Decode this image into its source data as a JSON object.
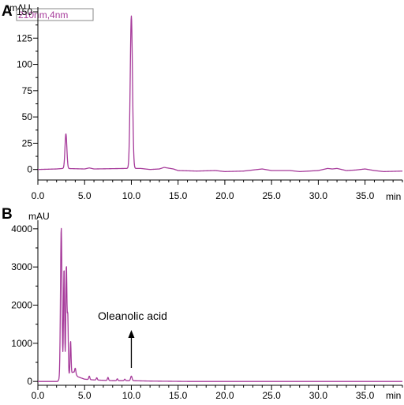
{
  "chart_data": [
    {
      "panel": "A",
      "type": "line",
      "ylabel": "mAU",
      "xlabel": "min",
      "legend": "210nm,4nm",
      "xlim": [
        0,
        39
      ],
      "ylim": [
        -10,
        150
      ],
      "xticks": [
        0,
        5,
        10,
        15,
        20,
        25,
        30,
        35
      ],
      "xtick_labels": [
        "0.0",
        "5.0",
        "10.0",
        "15.0",
        "20.0",
        "25.0",
        "30.0",
        "35.0"
      ],
      "yticks": [
        0,
        25,
        50,
        75,
        100,
        125,
        150
      ],
      "ytick_labels": [
        "0",
        "25",
        "50",
        "75",
        "100",
        "125",
        "150"
      ],
      "baseline": [
        [
          0,
          0
        ],
        [
          2,
          0.5
        ],
        [
          2.7,
          1
        ],
        [
          5,
          0.5
        ],
        [
          5.5,
          1.5
        ],
        [
          6,
          0.5
        ],
        [
          9.5,
          1
        ],
        [
          11,
          1
        ],
        [
          12,
          0
        ],
        [
          13,
          0.5
        ],
        [
          13.5,
          2
        ],
        [
          14.5,
          0.5
        ],
        [
          15,
          -1
        ],
        [
          17,
          -1.5
        ],
        [
          19,
          -1
        ],
        [
          20,
          -2
        ],
        [
          22,
          -1.5
        ],
        [
          23.5,
          0
        ],
        [
          24,
          0.5
        ],
        [
          25,
          -1
        ],
        [
          27,
          -1
        ],
        [
          28,
          -2
        ],
        [
          30,
          -1
        ],
        [
          31,
          1
        ],
        [
          31.5,
          0.5
        ],
        [
          32,
          1
        ],
        [
          33,
          -1
        ],
        [
          34,
          -0.5
        ],
        [
          35,
          0.5
        ],
        [
          36,
          -1
        ],
        [
          37,
          -2
        ],
        [
          39,
          -1.5
        ]
      ],
      "peaks": [
        {
          "x": 3.0,
          "y": 33,
          "w": 0.1
        },
        {
          "x": 10.0,
          "y": 145,
          "w": 0.12
        }
      ]
    },
    {
      "panel": "B",
      "type": "line",
      "ylabel": "mAU",
      "xlabel": "min",
      "annotation": "Oleanolic acid",
      "annotation_x": 10.0,
      "xlim": [
        0,
        39
      ],
      "ylim": [
        -100,
        4100
      ],
      "xticks": [
        0,
        5,
        10,
        15,
        20,
        25,
        30,
        35
      ],
      "xtick_labels": [
        "0.0",
        "5.0",
        "10.0",
        "15.0",
        "20.0",
        "25.0",
        "30.0",
        "35.0"
      ],
      "yticks": [
        0,
        1000,
        2000,
        3000,
        4000
      ],
      "ytick_labels": [
        "0",
        "1000",
        "2000",
        "3000",
        "4000"
      ],
      "baseline": [
        [
          0,
          0
        ],
        [
          2.1,
          0
        ],
        [
          2.25,
          40
        ],
        [
          3.8,
          250
        ],
        [
          4.3,
          120
        ],
        [
          5,
          60
        ],
        [
          6,
          40
        ],
        [
          8,
          20
        ],
        [
          10,
          20
        ],
        [
          12,
          10
        ],
        [
          14,
          5
        ],
        [
          16,
          0
        ],
        [
          39,
          0
        ]
      ],
      "peaks": [
        {
          "x": 2.5,
          "y": 3950,
          "w": 0.08
        },
        {
          "x": 2.8,
          "y": 2850,
          "w": 0.06
        },
        {
          "x": 3.05,
          "y": 2900,
          "w": 0.06
        },
        {
          "x": 3.2,
          "y": 1500,
          "w": 0.05
        },
        {
          "x": 3.5,
          "y": 850,
          "w": 0.05
        },
        {
          "x": 4.0,
          "y": 150,
          "w": 0.06
        },
        {
          "x": 5.5,
          "y": 90,
          "w": 0.06
        },
        {
          "x": 6.3,
          "y": 60,
          "w": 0.06
        },
        {
          "x": 7.5,
          "y": 80,
          "w": 0.06
        },
        {
          "x": 8.5,
          "y": 50,
          "w": 0.06
        },
        {
          "x": 9.3,
          "y": 40,
          "w": 0.06
        },
        {
          "x": 10.0,
          "y": 120,
          "w": 0.08
        }
      ]
    }
  ]
}
